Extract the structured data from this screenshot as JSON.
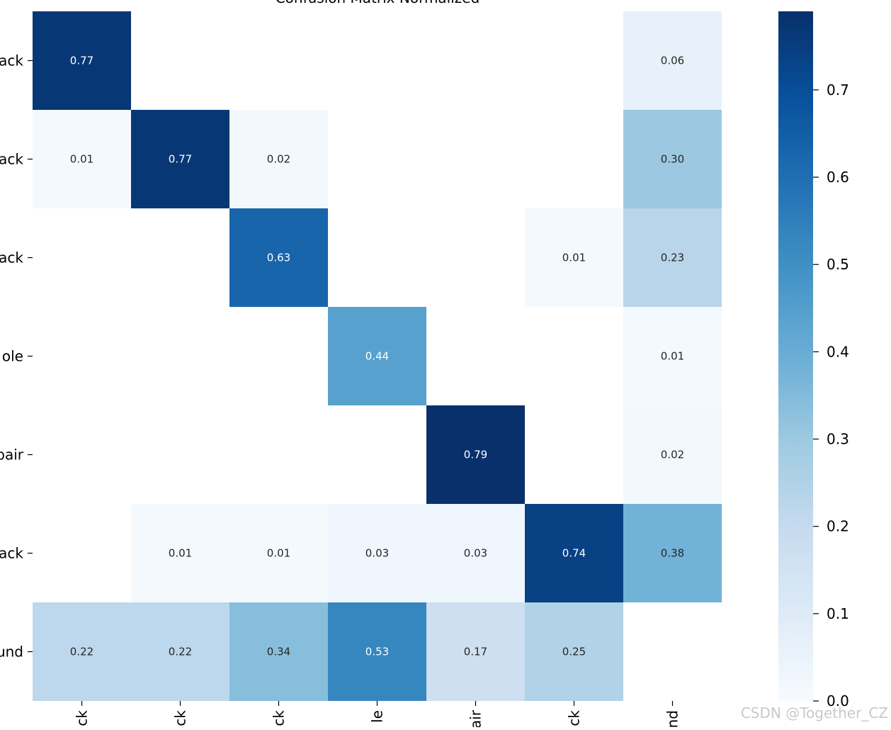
{
  "chart_data": {
    "type": "heatmap",
    "title": "Confusion Matrix Normalized",
    "row_labels": [
      "ack",
      "ack",
      "ack",
      "ole",
      "pair",
      "ack",
      "und"
    ],
    "col_labels": [
      "ck",
      "ck",
      "ck",
      "le",
      "air",
      "ck",
      "nd"
    ],
    "values": [
      [
        0.77,
        null,
        null,
        null,
        null,
        null,
        0.06
      ],
      [
        0.01,
        0.77,
        0.02,
        null,
        null,
        null,
        0.3
      ],
      [
        null,
        null,
        0.63,
        null,
        null,
        0.01,
        0.23
      ],
      [
        null,
        null,
        null,
        0.44,
        null,
        null,
        0.01
      ],
      [
        null,
        null,
        null,
        null,
        0.79,
        null,
        0.02
      ],
      [
        null,
        0.01,
        0.01,
        0.03,
        0.03,
        0.74,
        0.38
      ],
      [
        0.22,
        0.22,
        0.34,
        0.53,
        0.17,
        0.25,
        null
      ]
    ],
    "colormap": "Blues",
    "vmin": 0.0,
    "vmax": 0.79,
    "colorbar_ticks": [
      "0.0",
      "0.1",
      "0.2",
      "0.3",
      "0.4",
      "0.5",
      "0.6",
      "0.7"
    ],
    "colorbar_tick_values": [
      0.0,
      0.1,
      0.2,
      0.3,
      0.4,
      0.5,
      0.6,
      0.7
    ]
  },
  "watermark": "CSDN @Together_CZ"
}
